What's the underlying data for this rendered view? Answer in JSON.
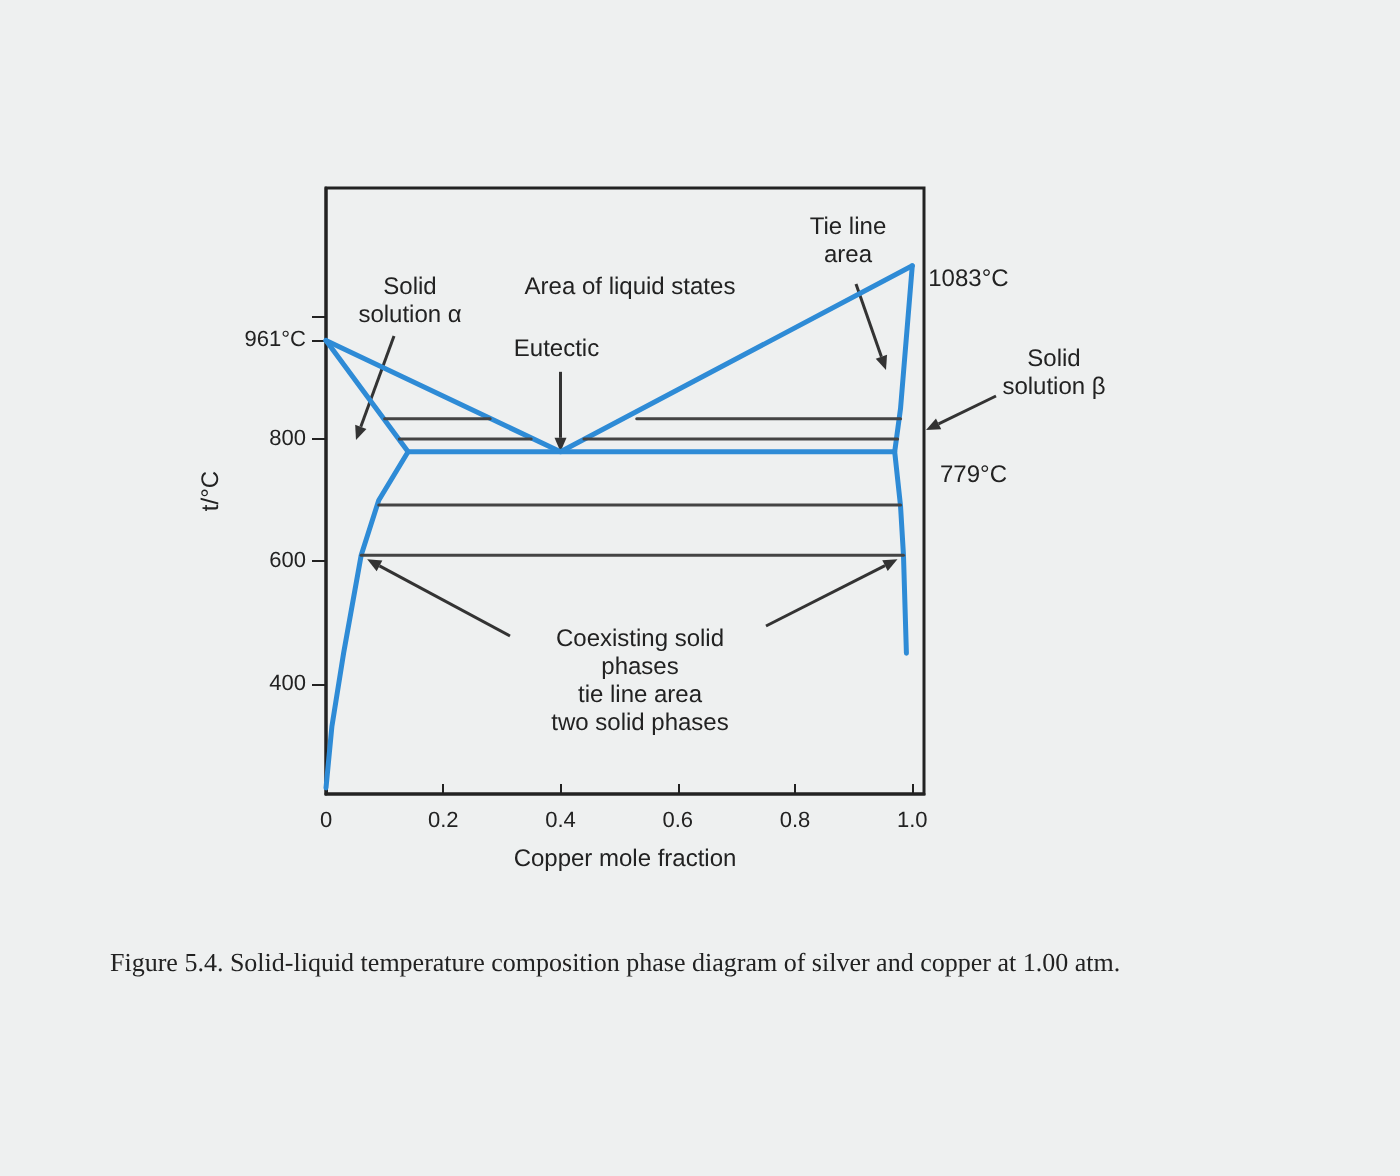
{
  "chart_data": {
    "type": "line",
    "xlabel": "Copper mole fraction",
    "ylabel": "t/°C",
    "xlim": [
      0,
      1.02
    ],
    "ylim": [
      220,
      1210
    ],
    "xticks": [
      0,
      0.2,
      0.4,
      0.6,
      0.8,
      {
        "value": 1,
        "label": "1.0"
      }
    ],
    "yticks": [
      400,
      600,
      800,
      {
        "value": 961,
        "label": "961°C"
      },
      {
        "value": 1000,
        "label": null
      }
    ],
    "grid": false,
    "marker": "none",
    "line_style": "solid",
    "series": [
      {
        "color": "#2e8bd6",
        "x": [
          0,
          0.4,
          1
        ],
        "values": [
          961,
          779,
          1083
        ]
      },
      {
        "color": "#2e8bd6",
        "x": [
          0,
          0.14,
          0.09,
          0.06,
          0.03,
          0.01,
          0
        ],
        "values": [
          961,
          779,
          700,
          610,
          450,
          330,
          230
        ]
      },
      {
        "color": "#2e8bd6",
        "x": [
          0.14,
          0.97
        ],
        "values": [
          779,
          779
        ]
      },
      {
        "color": "#2e8bd6",
        "x": [
          1,
          0.98,
          0.97,
          0.98,
          0.985,
          0.99
        ],
        "values": [
          1083,
          850,
          779,
          690,
          610,
          450
        ]
      },
      {
        "color": "#444444",
        "x": [
          0.1,
          0.28
        ],
        "values": [
          833,
          833
        ]
      },
      {
        "color": "#444444",
        "x": [
          0.53,
          0.98
        ],
        "values": [
          833,
          833
        ]
      },
      {
        "color": "#444444",
        "x": [
          0.125,
          0.35
        ],
        "values": [
          800,
          800
        ]
      },
      {
        "color": "#444444",
        "x": [
          0.44,
          0.975
        ],
        "values": [
          800,
          800
        ]
      },
      {
        "color": "#444444",
        "x": [
          0.09,
          0.98
        ],
        "values": [
          692,
          692
        ]
      },
      {
        "color": "#444444",
        "x": [
          0.06,
          0.985
        ],
        "values": [
          610,
          610
        ]
      }
    ],
    "annotations": [
      {
        "text": "1083°C",
        "x": 1,
        "y": 1083
      },
      "779°C",
      "Solid\nsolution α",
      "Area of liquid states",
      {
        "text": "Eutectic",
        "x": 0.4,
        "y": 779
      },
      "Tie line\narea",
      "Solid\nsolution β",
      "Coexisting solid\nphases\ntie line area\ntwo solid phases",
      "Figure 5.4. Solid-liquid temperature composition phase diagram of silver and copper at 1.00 atm."
    ]
  }
}
